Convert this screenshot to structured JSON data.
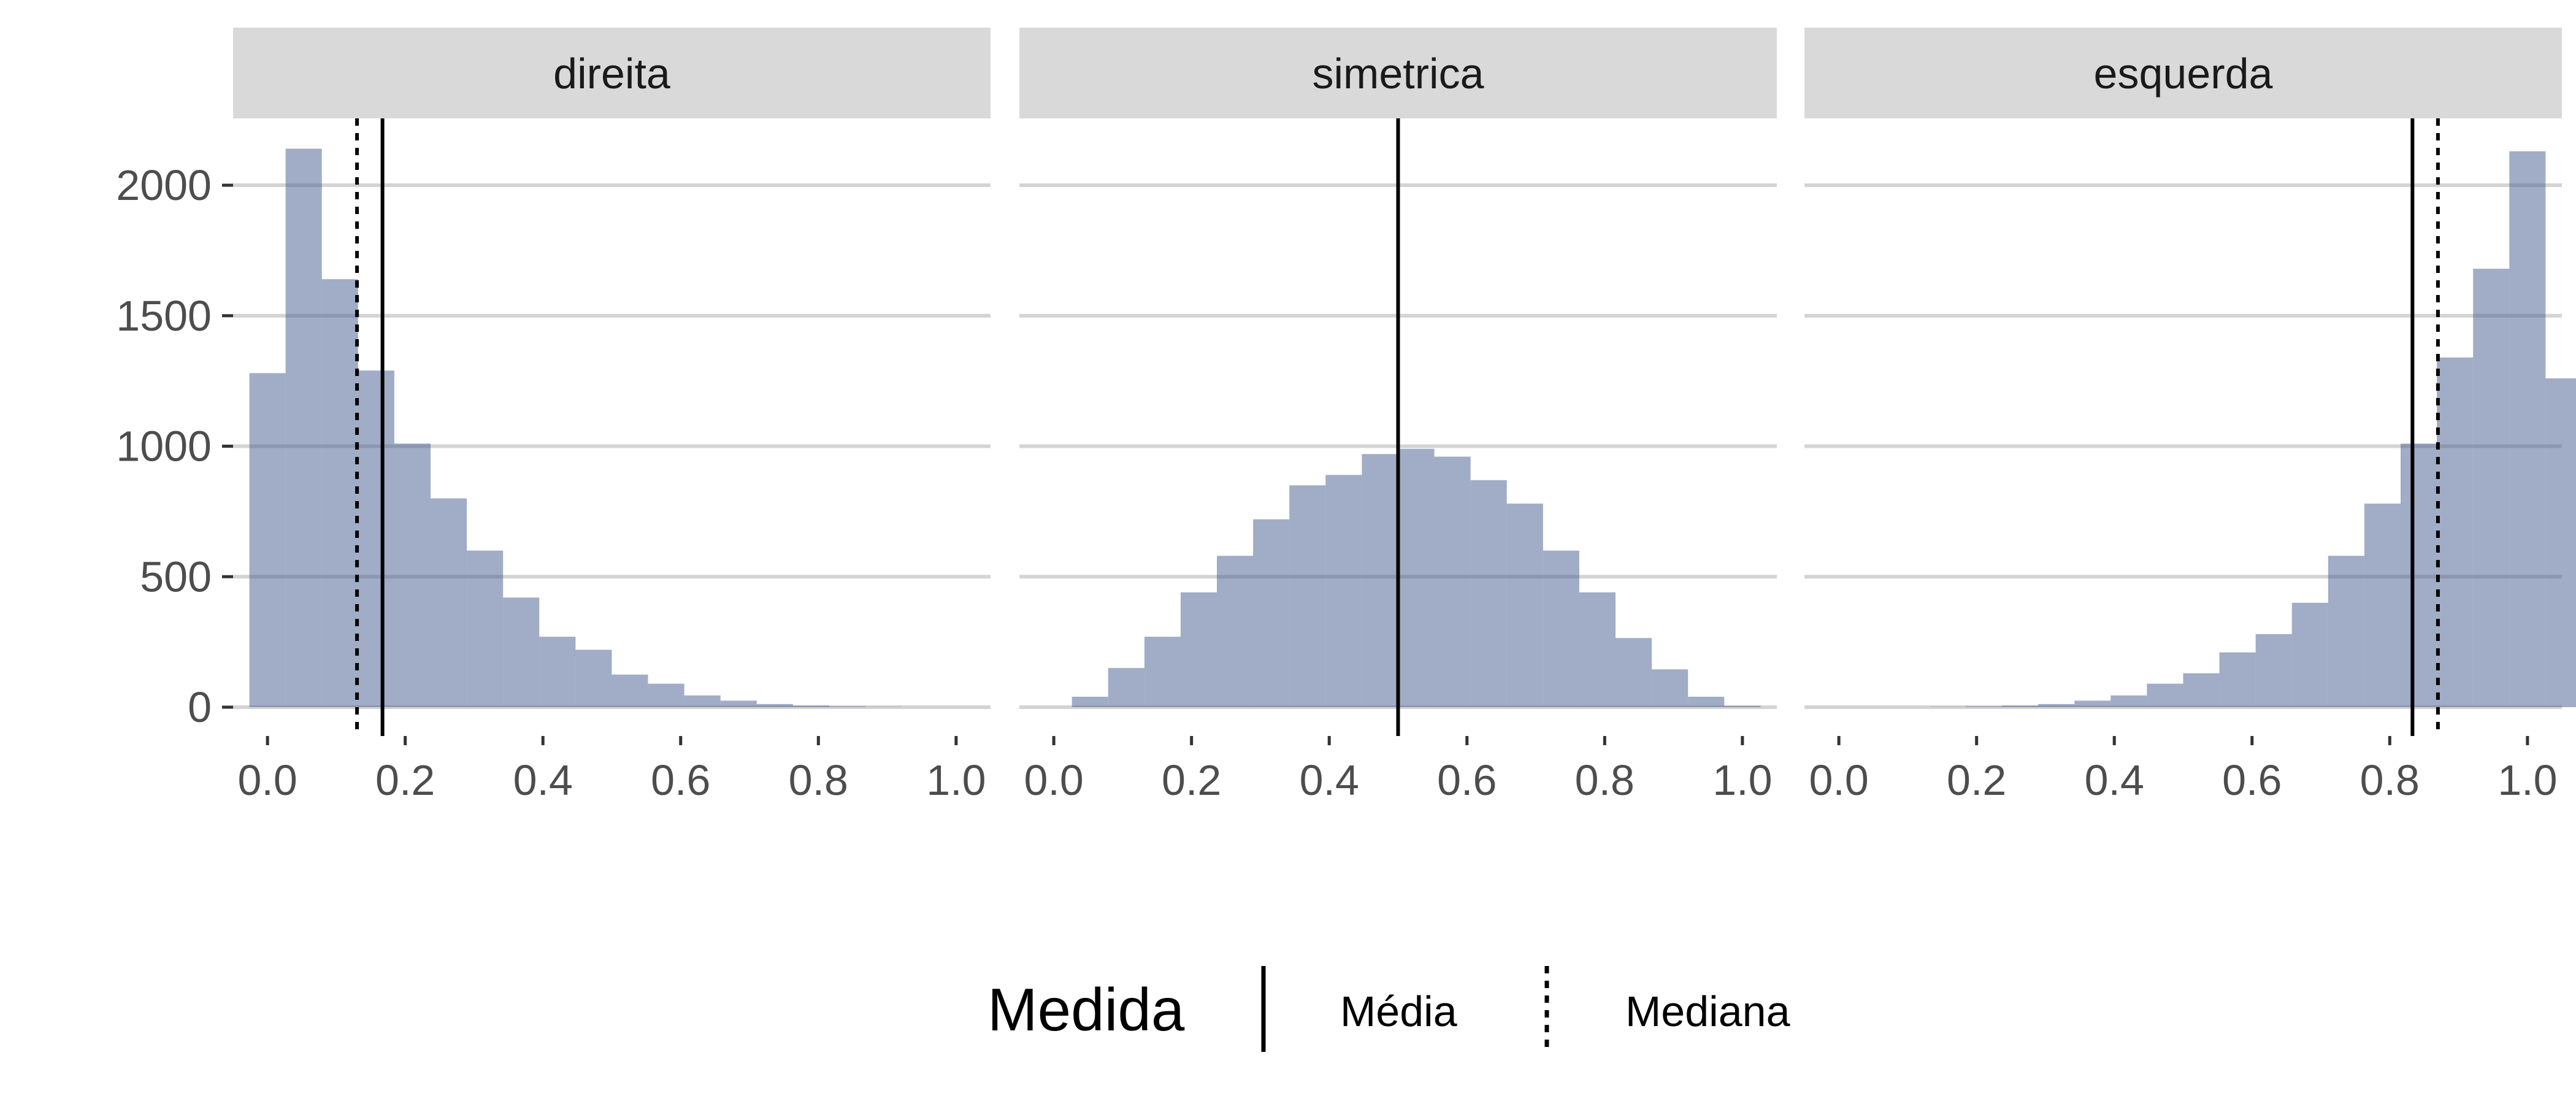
{
  "chart_data": {
    "type": "bar",
    "subtype": "faceted-histogram",
    "bar_color": "#4a6291",
    "bar_opacity": 0.52,
    "strip_color": "#d9d9d9",
    "grid": "horizontal-major",
    "legend_position": "bottom",
    "xlim": [
      -0.05,
      1.05
    ],
    "ylim": [
      0,
      2250
    ],
    "x_ticks": [
      "0.0",
      "0.2",
      "0.4",
      "0.6",
      "0.8",
      "1.0"
    ],
    "y_ticks": [
      "0",
      "500",
      "1000",
      "1500",
      "2000"
    ],
    "bin_width": 0.05263,
    "bin_start": -0.02632,
    "facets": [
      {
        "label": "direita",
        "counts": [
          1280,
          2140,
          1640,
          1290,
          1010,
          800,
          600,
          420,
          270,
          220,
          125,
          90,
          45,
          25,
          12,
          6,
          3,
          1,
          0,
          0,
          0
        ],
        "mean": 0.167,
        "median": 0.13
      },
      {
        "label": "simetrica",
        "counts": [
          0,
          40,
          150,
          270,
          440,
          580,
          720,
          850,
          890,
          970,
          990,
          960,
          870,
          780,
          600,
          440,
          265,
          145,
          40,
          5,
          0
        ],
        "mean": 0.5,
        "median": 0.5
      },
      {
        "label": "esquerda",
        "counts": [
          0,
          0,
          0,
          1,
          3,
          6,
          12,
          25,
          45,
          90,
          130,
          210,
          280,
          400,
          580,
          780,
          1010,
          1340,
          1680,
          2130,
          1260
        ],
        "mean": 0.833,
        "median": 0.87
      }
    ],
    "legend": {
      "title": "Medida",
      "entries": [
        {
          "label": "Média",
          "linetype": "solid"
        },
        {
          "label": "Mediana",
          "linetype": "dotted"
        }
      ]
    }
  }
}
